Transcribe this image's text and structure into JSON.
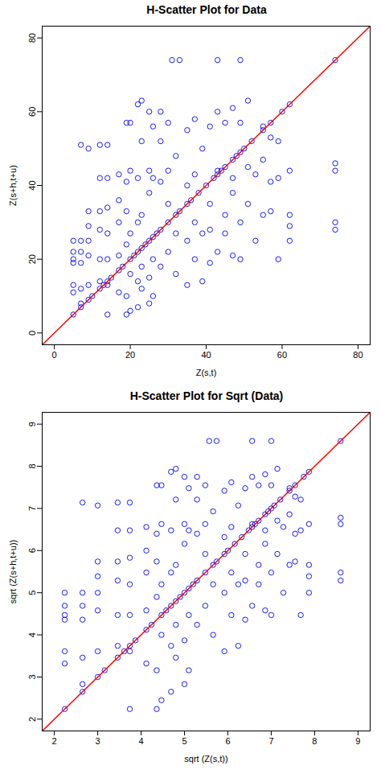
{
  "chart_data": [
    {
      "type": "scatter",
      "title": "H-Scatter Plot for Data",
      "x_label": "Z(s,t)",
      "y_label": "Z(s+h,t+u)",
      "xlim": [
        -3.2,
        83.2
      ],
      "ylim": [
        -3.2,
        83.2
      ],
      "xticks": [
        0,
        20,
        40,
        60,
        80
      ],
      "yticks": [
        0,
        20,
        40,
        60,
        80
      ],
      "series": [
        {
          "type": "scatter",
          "marker": "circle",
          "color": "#0000ff",
          "x": [
            5,
            7,
            9,
            10,
            12,
            13,
            14,
            15,
            17,
            18,
            20,
            21,
            22,
            23,
            24,
            25,
            26,
            27,
            28,
            30,
            32,
            33,
            35,
            36,
            38,
            40,
            42,
            43,
            44,
            45,
            47,
            48,
            49,
            50,
            52,
            55,
            57,
            60,
            62,
            74,
            5,
            5,
            5,
            5,
            5,
            5,
            7,
            7,
            7,
            7,
            7,
            7,
            9,
            9,
            9,
            9,
            9,
            9,
            12,
            12,
            12,
            12,
            12,
            12,
            14,
            14,
            14,
            14,
            14,
            14,
            14,
            17,
            17,
            17,
            17,
            17,
            19,
            19,
            19,
            19,
            19,
            19,
            20,
            20,
            20,
            20,
            20,
            22,
            22,
            22,
            22,
            22,
            23,
            23,
            23,
            23,
            23,
            25,
            25,
            25,
            25,
            25,
            26,
            26,
            26,
            26,
            28,
            28,
            28,
            28,
            30,
            30,
            30,
            30,
            31,
            32,
            32,
            32,
            33,
            35,
            35,
            35,
            35,
            37,
            37,
            37,
            37,
            39,
            39,
            39,
            41,
            41,
            41,
            41,
            43,
            43,
            43,
            43,
            45,
            45,
            45,
            47,
            47,
            47,
            47,
            49,
            49,
            49,
            49,
            51,
            51,
            51,
            53,
            53,
            55,
            55,
            55,
            57,
            57,
            57,
            59,
            59,
            59,
            62,
            62,
            62,
            62,
            74,
            74,
            74,
            74
          ],
          "values": [
            5,
            7,
            9,
            10,
            12,
            13,
            14,
            15,
            17,
            18,
            20,
            21,
            22,
            23,
            24,
            25,
            26,
            27,
            28,
            30,
            32,
            33,
            35,
            36,
            38,
            40,
            42,
            43,
            44,
            45,
            47,
            48,
            49,
            50,
            52,
            55,
            57,
            60,
            62,
            74,
            11,
            13,
            19,
            20,
            22,
            25,
            8,
            12,
            19,
            22,
            25,
            51,
            13,
            21,
            25,
            29,
            33,
            50,
            14,
            20,
            28,
            33,
            42,
            51,
            5,
            13,
            20,
            27,
            34,
            42,
            51,
            11,
            21,
            30,
            36,
            43,
            5,
            10,
            24,
            33,
            41,
            57,
            6,
            16,
            27,
            44,
            57,
            7,
            14,
            30,
            42,
            62,
            12,
            18,
            32,
            52,
            63,
            8,
            15,
            38,
            44,
            60,
            10,
            20,
            42,
            56,
            18,
            41,
            52,
            60,
            22,
            35,
            44,
            57,
            74,
            16,
            27,
            48,
            74,
            13,
            25,
            40,
            55,
            20,
            30,
            43,
            58,
            14,
            27,
            50,
            19,
            28,
            35,
            56,
            74,
            22,
            44,
            60,
            27,
            32,
            57,
            21,
            38,
            42,
            61,
            20,
            30,
            57,
            74,
            35,
            45,
            63,
            25,
            43,
            32,
            47,
            56,
            33,
            41,
            53,
            20,
            42,
            52,
            25,
            29,
            32,
            44,
            28,
            30,
            44,
            46
          ]
        },
        {
          "type": "line",
          "color": "#ff0000",
          "x": [
            -3.2,
            83.2
          ],
          "values": [
            -3.2,
            83.2
          ]
        }
      ]
    },
    {
      "type": "scatter",
      "title": "H-Scatter Plot for Sqrt (Data)",
      "x_label": "sqrt (Z(s,t))",
      "y_label": "sqrt (Z(s+h,t+u))",
      "xlim": [
        1.72,
        9.28
      ],
      "ylim": [
        1.72,
        9.28
      ],
      "xticks": [
        2,
        3,
        4,
        5,
        6,
        7,
        8,
        9
      ],
      "yticks": [
        2,
        3,
        4,
        5,
        6,
        7,
        8,
        9
      ],
      "series": [
        {
          "type": "scatter",
          "marker": "circle",
          "color": "#0000ff",
          "x": [
            2.24,
            2.65,
            3,
            3.16,
            3.46,
            3.61,
            3.74,
            3.87,
            4.12,
            4.24,
            4.47,
            4.58,
            4.69,
            4.8,
            4.9,
            5,
            5.1,
            5.2,
            5.29,
            5.48,
            5.66,
            5.74,
            5.92,
            6,
            6.16,
            6.32,
            6.48,
            6.56,
            6.63,
            6.71,
            6.86,
            6.93,
            7,
            7.07,
            7.21,
            7.42,
            7.55,
            7.75,
            7.87,
            8.6,
            2.24,
            2.24,
            2.24,
            2.24,
            2.24,
            2.24,
            2.65,
            2.65,
            2.65,
            2.65,
            2.65,
            2.65,
            3,
            3,
            3,
            3,
            3,
            3,
            3.46,
            3.46,
            3.46,
            3.46,
            3.46,
            3.46,
            3.74,
            3.74,
            3.74,
            3.74,
            3.74,
            3.74,
            3.74,
            4.12,
            4.12,
            4.12,
            4.12,
            4.12,
            4.36,
            4.36,
            4.36,
            4.36,
            4.36,
            4.36,
            4.47,
            4.47,
            4.47,
            4.47,
            4.47,
            4.69,
            4.69,
            4.69,
            4.69,
            4.69,
            4.8,
            4.8,
            4.8,
            4.8,
            4.8,
            5,
            5,
            5,
            5,
            5,
            5.1,
            5.1,
            5.1,
            5.1,
            5.29,
            5.29,
            5.29,
            5.29,
            5.48,
            5.48,
            5.48,
            5.48,
            5.57,
            5.66,
            5.66,
            5.66,
            5.74,
            5.92,
            5.92,
            5.92,
            5.92,
            6.08,
            6.08,
            6.08,
            6.08,
            6.24,
            6.24,
            6.24,
            6.4,
            6.4,
            6.4,
            6.4,
            6.56,
            6.56,
            6.56,
            6.56,
            6.71,
            6.71,
            6.71,
            6.86,
            6.86,
            6.86,
            6.86,
            7,
            7,
            7,
            7,
            7.14,
            7.14,
            7.14,
            7.28,
            7.28,
            7.42,
            7.42,
            7.42,
            7.55,
            7.55,
            7.55,
            7.68,
            7.68,
            7.68,
            7.87,
            7.87,
            7.87,
            7.87,
            8.6,
            8.6,
            8.6,
            8.6
          ],
          "values": [
            2.24,
            2.65,
            3,
            3.16,
            3.46,
            3.61,
            3.74,
            3.87,
            4.12,
            4.24,
            4.47,
            4.58,
            4.69,
            4.8,
            4.9,
            5,
            5.1,
            5.2,
            5.29,
            5.48,
            5.66,
            5.74,
            5.92,
            6,
            6.16,
            6.32,
            6.48,
            6.56,
            6.63,
            6.71,
            6.86,
            6.93,
            7,
            7.07,
            7.21,
            7.42,
            7.55,
            7.75,
            7.87,
            8.6,
            3.32,
            3.61,
            4.36,
            4.47,
            4.69,
            5,
            2.83,
            3.46,
            4.36,
            4.69,
            5,
            7.14,
            3.61,
            4.58,
            5,
            5.39,
            5.74,
            7.07,
            3.74,
            4.47,
            5.29,
            5.74,
            6.48,
            7.14,
            2.24,
            3.61,
            4.47,
            5.2,
            5.83,
            6.48,
            7.14,
            3.32,
            4.58,
            5.48,
            6,
            6.56,
            2.24,
            3.16,
            4.9,
            5.74,
            6.4,
            7.55,
            2.45,
            4,
            5.2,
            6.63,
            7.55,
            2.65,
            3.74,
            5.48,
            6.48,
            7.87,
            3.46,
            4.24,
            5.66,
            7.21,
            7.94,
            2.83,
            3.87,
            6.16,
            6.63,
            7.75,
            3.16,
            4.47,
            6.48,
            7.48,
            4.24,
            6.4,
            7.21,
            7.75,
            4.69,
            5.92,
            6.63,
            7.55,
            8.6,
            4,
            5.2,
            6.93,
            8.6,
            3.61,
            5,
            6.32,
            7.42,
            4.47,
            5.48,
            6.56,
            7.62,
            3.74,
            5.2,
            7.07,
            4.36,
            5.29,
            5.92,
            7.48,
            8.6,
            4.69,
            6.63,
            7.75,
            5.2,
            5.66,
            7.55,
            4.58,
            6.16,
            6.48,
            7.81,
            4.47,
            5.48,
            7.55,
            8.6,
            5.92,
            6.71,
            7.94,
            5,
            6.56,
            5.66,
            6.86,
            7.48,
            5.74,
            6.4,
            7.28,
            4.47,
            6.48,
            7.21,
            5,
            5.39,
            5.66,
            6.63,
            5.29,
            5.48,
            6.63,
            6.78
          ]
        },
        {
          "type": "line",
          "color": "#ff0000",
          "x": [
            1.72,
            9.28
          ],
          "values": [
            1.72,
            9.28
          ]
        }
      ]
    }
  ]
}
